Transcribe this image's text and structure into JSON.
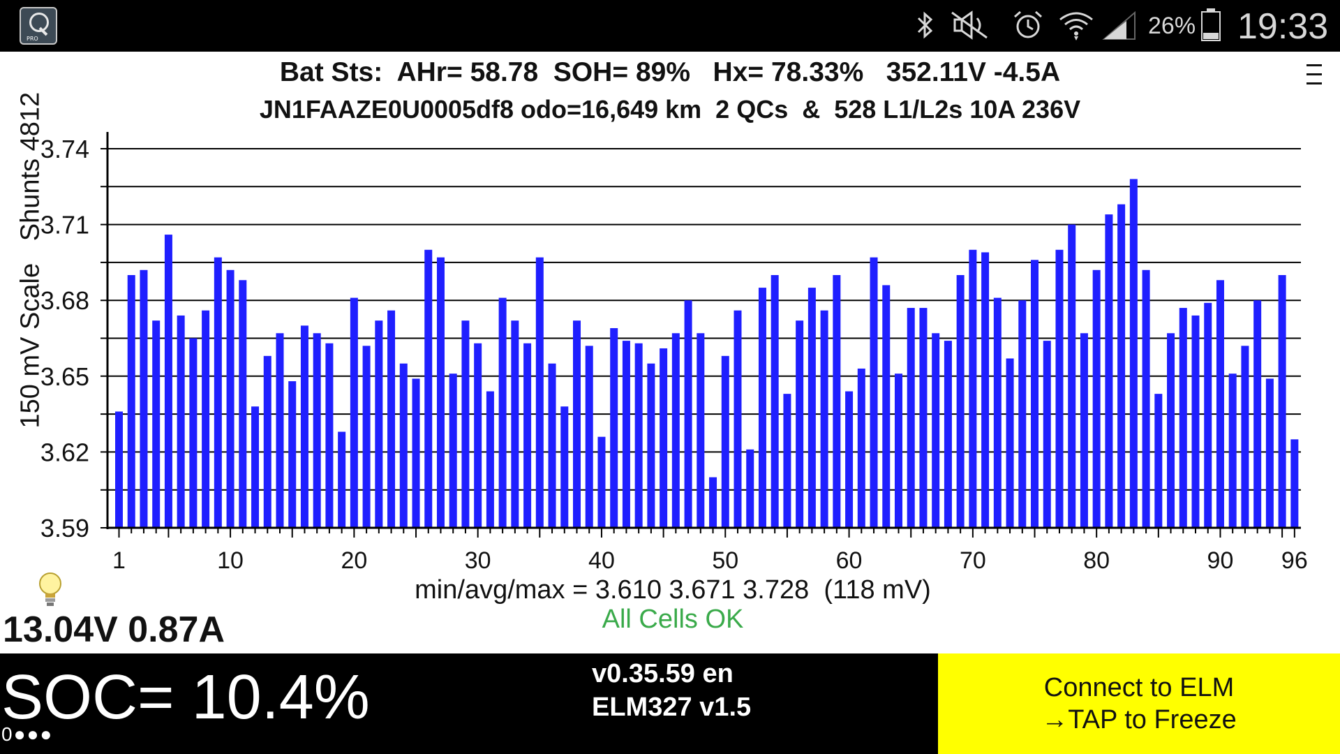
{
  "status_bar": {
    "icons": [
      "app-icon",
      "bluetooth-icon",
      "mute-icon",
      "alarm-icon",
      "wifi-icon",
      "signal-icon",
      "battery-icon"
    ],
    "battery": "26%",
    "time": "19:33"
  },
  "header": {
    "line1": "Bat Sts:  AHr= 58.78  SOH= 89%   Hx= 78.33%   352.11V -4.5A",
    "line2": "JN1FAAZE0U0005df8 odo=16,649 km  2 QCs  &  528 L1/L2s 10A 236V"
  },
  "chart_data": {
    "type": "bar",
    "ylabel": "150 mV Scale   Shunts 4812",
    "ylim": [
      3.59,
      3.74
    ],
    "yticks": [
      "3.74",
      "3.71",
      "3.68",
      "3.65",
      "3.62",
      "3.59"
    ],
    "xticks": [
      "1",
      "10",
      "20",
      "30",
      "40",
      "50",
      "60",
      "70",
      "80",
      "90",
      "96"
    ],
    "bar_color": "#1f1fff",
    "grid": true,
    "values": [
      3.636,
      3.69,
      3.692,
      3.672,
      3.706,
      3.674,
      3.665,
      3.676,
      3.697,
      3.692,
      3.688,
      3.638,
      3.658,
      3.667,
      3.648,
      3.67,
      3.667,
      3.663,
      3.628,
      3.681,
      3.662,
      3.672,
      3.676,
      3.655,
      3.649,
      3.7,
      3.697,
      3.651,
      3.672,
      3.663,
      3.644,
      3.681,
      3.672,
      3.663,
      3.697,
      3.655,
      3.638,
      3.672,
      3.662,
      3.626,
      3.669,
      3.664,
      3.663,
      3.655,
      3.661,
      3.667,
      3.68,
      3.667,
      3.61,
      3.658,
      3.676,
      3.621,
      3.685,
      3.69,
      3.643,
      3.672,
      3.685,
      3.676,
      3.69,
      3.644,
      3.653,
      3.697,
      3.686,
      3.651,
      3.677,
      3.677,
      3.667,
      3.664,
      3.69,
      3.7,
      3.699,
      3.681,
      3.657,
      3.68,
      3.696,
      3.664,
      3.7,
      3.71,
      3.667,
      3.692,
      3.714,
      3.718,
      3.728,
      3.692,
      3.643,
      3.667,
      3.677,
      3.674,
      3.679,
      3.688,
      3.651,
      3.662,
      3.68,
      3.649,
      3.69,
      3.625
    ]
  },
  "summary": {
    "minmax": "min/avg/max = 3.610 3.671 3.728  (118 mV)",
    "status": "All Cells OK"
  },
  "aux": {
    "readout": "13.04V 0.87A"
  },
  "bottom": {
    "soc": "SOC= 10.4%",
    "dots": "0●●●",
    "version": "v0.35.59 en",
    "elm": "ELM327 v1.5",
    "connect_line1": "Connect to ELM",
    "connect_line2": "→TAP to Freeze"
  },
  "colors": {
    "bar": "#1f1fff",
    "ok": "#3aaa4a",
    "button": "#ffff00"
  }
}
